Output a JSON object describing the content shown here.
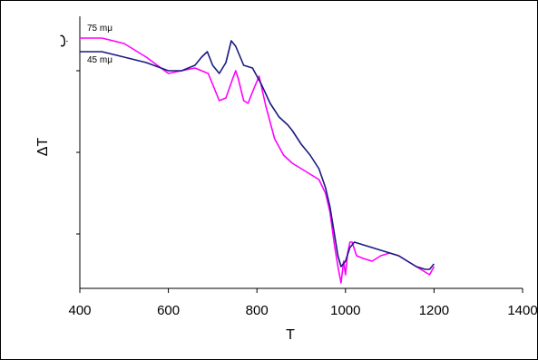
{
  "chart_data": {
    "type": "line",
    "title": "",
    "xlabel": "T",
    "ylabel": "ΔT",
    "xlim": [
      400,
      1400
    ],
    "ylim": [
      0,
      100
    ],
    "x_ticks": [
      400,
      600,
      800,
      1000,
      1200,
      1400
    ],
    "corner_marker": "ب",
    "grid": false,
    "series": [
      {
        "name": "75 mμ",
        "color": "#ff00ff",
        "points": [
          [
            400,
            92
          ],
          [
            450,
            92
          ],
          [
            500,
            90
          ],
          [
            550,
            85
          ],
          [
            600,
            79
          ],
          [
            630,
            80
          ],
          [
            660,
            81
          ],
          [
            690,
            79
          ],
          [
            700,
            75
          ],
          [
            715,
            69
          ],
          [
            730,
            70
          ],
          [
            745,
            77
          ],
          [
            752,
            80
          ],
          [
            758,
            77
          ],
          [
            770,
            69
          ],
          [
            780,
            68
          ],
          [
            792,
            73
          ],
          [
            805,
            78
          ],
          [
            820,
            67
          ],
          [
            840,
            55
          ],
          [
            860,
            49
          ],
          [
            880,
            46
          ],
          [
            900,
            44
          ],
          [
            920,
            42
          ],
          [
            940,
            40
          ],
          [
            955,
            35
          ],
          [
            965,
            28
          ],
          [
            975,
            16
          ],
          [
            983,
            8
          ],
          [
            990,
            2
          ],
          [
            996,
            10
          ],
          [
            1000,
            5
          ],
          [
            1005,
            13
          ],
          [
            1010,
            17
          ],
          [
            1015,
            17
          ],
          [
            1025,
            12
          ],
          [
            1040,
            11
          ],
          [
            1060,
            10
          ],
          [
            1080,
            12
          ],
          [
            1100,
            13
          ],
          [
            1120,
            12
          ],
          [
            1140,
            10
          ],
          [
            1160,
            8
          ],
          [
            1180,
            6
          ],
          [
            1190,
            5
          ],
          [
            1200,
            8
          ]
        ]
      },
      {
        "name": "45 mμ",
        "color": "#1a1a80",
        "points": [
          [
            400,
            87
          ],
          [
            450,
            87
          ],
          [
            500,
            85
          ],
          [
            550,
            83
          ],
          [
            600,
            80
          ],
          [
            630,
            80
          ],
          [
            660,
            82
          ],
          [
            675,
            85
          ],
          [
            688,
            87
          ],
          [
            700,
            82
          ],
          [
            715,
            79
          ],
          [
            730,
            83
          ],
          [
            742,
            91
          ],
          [
            752,
            89
          ],
          [
            770,
            82
          ],
          [
            790,
            81
          ],
          [
            810,
            75
          ],
          [
            830,
            68
          ],
          [
            850,
            63
          ],
          [
            870,
            60
          ],
          [
            880,
            58
          ],
          [
            900,
            53
          ],
          [
            920,
            49
          ],
          [
            940,
            44
          ],
          [
            955,
            37
          ],
          [
            965,
            30
          ],
          [
            975,
            20
          ],
          [
            983,
            12
          ],
          [
            990,
            8
          ],
          [
            1000,
            10
          ],
          [
            1010,
            15
          ],
          [
            1020,
            17
          ],
          [
            1040,
            16
          ],
          [
            1060,
            15
          ],
          [
            1080,
            14
          ],
          [
            1100,
            13
          ],
          [
            1120,
            12
          ],
          [
            1140,
            10
          ],
          [
            1160,
            8
          ],
          [
            1180,
            7
          ],
          [
            1190,
            7
          ],
          [
            1200,
            9
          ]
        ]
      }
    ]
  }
}
